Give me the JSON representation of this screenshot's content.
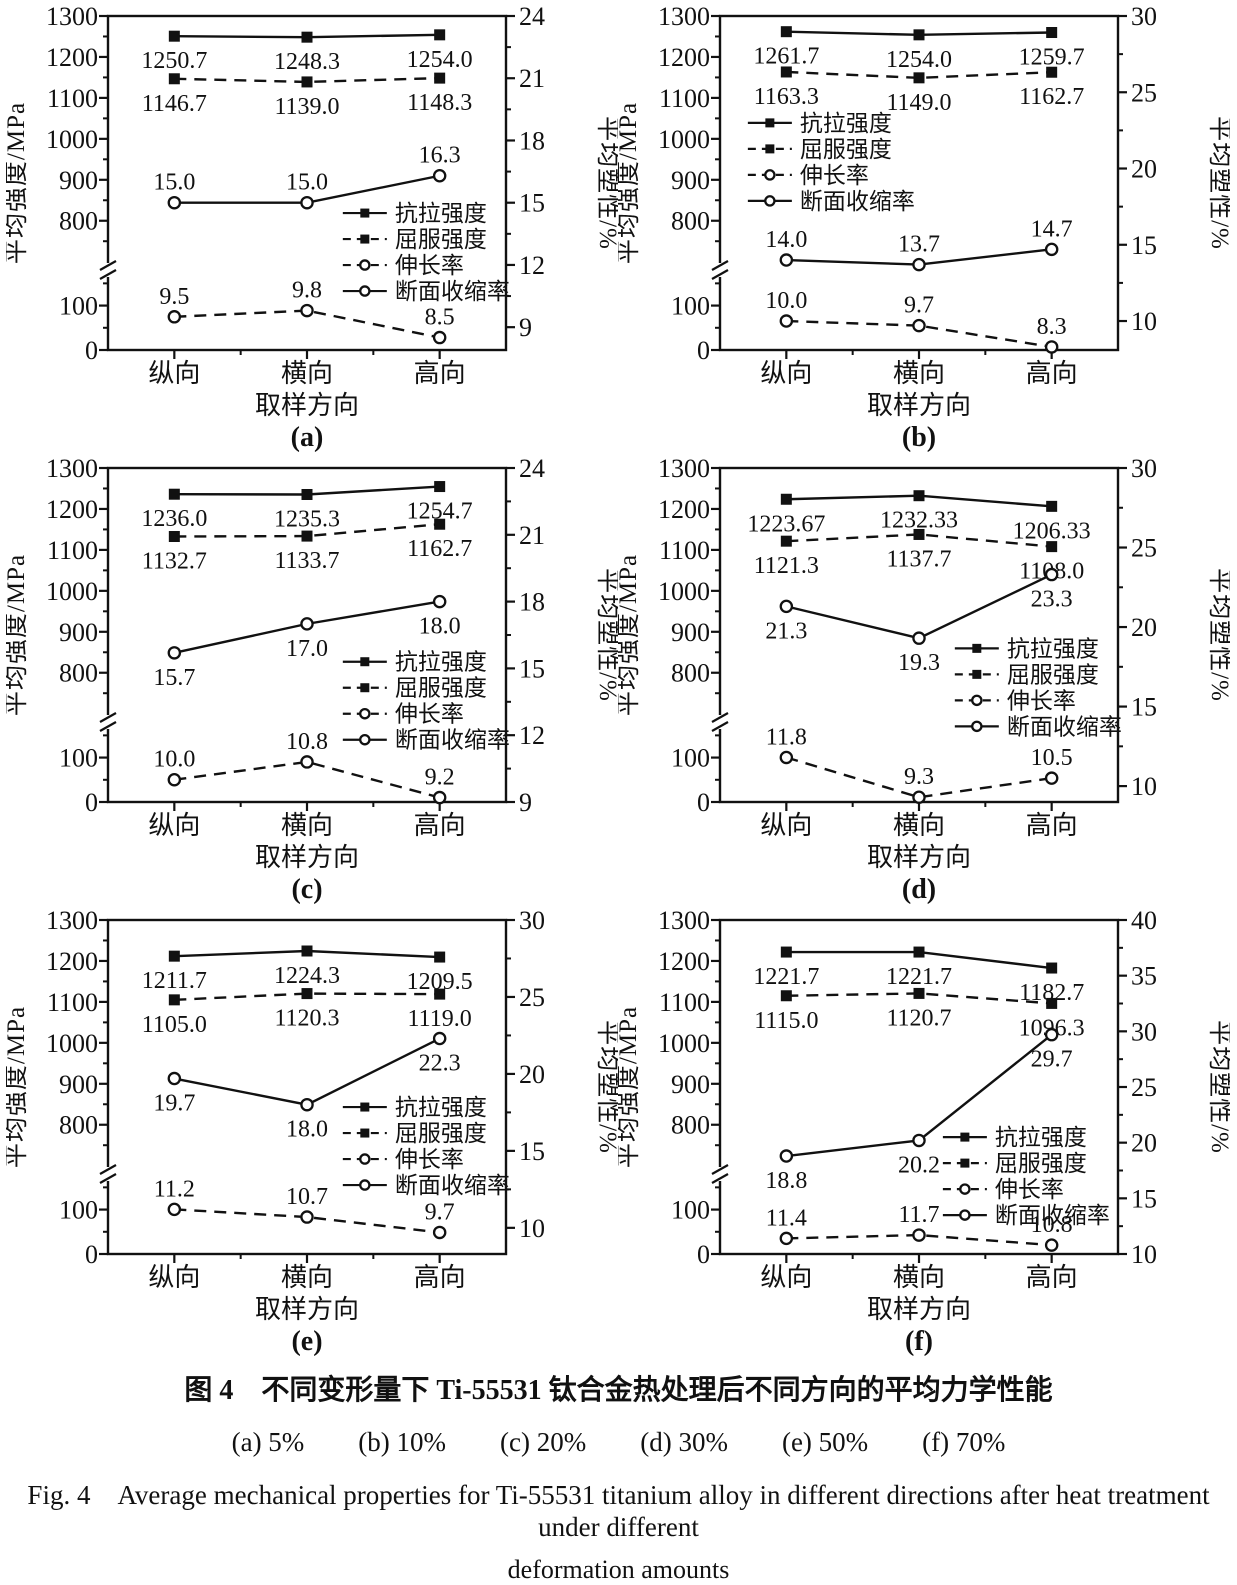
{
  "caption": {
    "line1_cn": "图 4　不同变形量下 Ti-55531 钛合金热处理后不同方向的平均力学性能",
    "line2_items": "(a) 5%　　(b) 10%　　(c) 20%　　(d) 30%　　(e) 50%　　(f) 70%",
    "line3_en": "Fig. 4　Average mechanical properties for Ti-55531 titanium alloy in different directions after heat treatment under different",
    "line4_en": "deformation amounts"
  },
  "chart_data": {
    "type": "line",
    "grid": "2 columns x 3 rows",
    "common": {
      "categories": [
        "纵向",
        "横向",
        "高向"
      ],
      "x_label": "取样方向",
      "left_axis": {
        "label": "平均强度/MPa",
        "ticks_major": [
          1300,
          1200,
          1100,
          1000,
          900,
          800,
          100,
          0
        ],
        "ticks_minor": [
          1250,
          1150,
          1050,
          950,
          850,
          750,
          150,
          50
        ],
        "break": true
      },
      "right_axis_label": "平均塑性/%",
      "series_styles": [
        {
          "name": "抗拉强度",
          "axis": "left",
          "line": "solid",
          "marker": "filled-square"
        },
        {
          "name": "屈服强度",
          "axis": "left",
          "line": "dashed",
          "marker": "filled-square"
        },
        {
          "name": "伸长率",
          "axis": "right",
          "line": "dashed",
          "marker": "open-circle"
        },
        {
          "name": "断面收缩率",
          "axis": "right",
          "line": "solid",
          "marker": "open-circle"
        }
      ]
    },
    "plots": [
      {
        "label": "(a)",
        "deformation": "5%",
        "right_axis": {
          "ticks": [
            24,
            21,
            18,
            15,
            12,
            9
          ],
          "range": [
            7.9,
            24
          ]
        },
        "legend_pos": [
          0.59,
          0.59
        ],
        "series": [
          {
            "name": "抗拉强度",
            "values": [
              1250.7,
              1248.3,
              1254.0
            ],
            "labels": [
              "1250.7",
              "1248.3",
              "1254.0"
            ],
            "label_pos": "below"
          },
          {
            "name": "屈服强度",
            "values": [
              1146.7,
              1139.0,
              1148.3
            ],
            "labels": [
              "1146.7",
              "1139.0",
              "1148.3"
            ],
            "label_pos": "below"
          },
          {
            "name": "伸长率",
            "values": [
              9.5,
              9.8,
              8.5
            ],
            "labels": [
              "9.5",
              "9.8",
              "8.5"
            ],
            "label_pos": "above"
          },
          {
            "name": "断面收缩率",
            "values": [
              15.0,
              15.0,
              16.3
            ],
            "labels": [
              "15.0",
              "15.0",
              "16.3"
            ],
            "label_pos": "above"
          }
        ]
      },
      {
        "label": "(b)",
        "deformation": "10%",
        "right_axis": {
          "ticks": [
            30,
            25,
            20,
            15,
            10
          ],
          "range": [
            8.1,
            30
          ]
        },
        "legend_pos": [
          0.07,
          0.32
        ],
        "series": [
          {
            "name": "抗拉强度",
            "values": [
              1261.7,
              1254.0,
              1259.7
            ],
            "labels": [
              "1261.7",
              "1254.0",
              "1259.7"
            ],
            "label_pos": "below"
          },
          {
            "name": "屈服强度",
            "values": [
              1163.3,
              1149.0,
              1162.7
            ],
            "labels": [
              "1163.3",
              "1149.0",
              "1162.7"
            ],
            "label_pos": "below"
          },
          {
            "name": "伸长率",
            "values": [
              10.0,
              9.7,
              8.3
            ],
            "labels": [
              "10.0",
              "9.7",
              "8.3"
            ],
            "label_pos": "above"
          },
          {
            "name": "断面收缩率",
            "values": [
              14.0,
              13.7,
              14.7
            ],
            "labels": [
              "14.0",
              "13.7",
              "14.7"
            ],
            "label_pos": "above"
          }
        ]
      },
      {
        "label": "(c)",
        "deformation": "20%",
        "right_axis": {
          "ticks": [
            24,
            21,
            18,
            15,
            12,
            9
          ],
          "range": [
            9.0,
            24
          ]
        },
        "legend_pos": [
          0.59,
          0.58
        ],
        "series": [
          {
            "name": "抗拉强度",
            "values": [
              1236.0,
              1235.3,
              1254.7
            ],
            "labels": [
              "1236.0",
              "1235.3",
              "1254.7"
            ],
            "label_pos": "below"
          },
          {
            "name": "屈服强度",
            "values": [
              1132.7,
              1133.7,
              1162.7
            ],
            "labels": [
              "1132.7",
              "1133.7",
              "1162.7"
            ],
            "label_pos": "below"
          },
          {
            "name": "伸长率",
            "values": [
              10.0,
              10.8,
              9.2
            ],
            "labels": [
              "10.0",
              "10.8",
              "9.2"
            ],
            "label_pos": "above"
          },
          {
            "name": "断面收缩率",
            "values": [
              15.7,
              17.0,
              18.0
            ],
            "labels": [
              "15.7",
              "17.0",
              "18.0"
            ],
            "label_pos": "below"
          }
        ]
      },
      {
        "label": "(d)",
        "deformation": "30%",
        "right_axis": {
          "ticks": [
            30,
            25,
            20,
            15,
            10
          ],
          "range": [
            9.0,
            30
          ]
        },
        "legend_pos": [
          0.59,
          0.54
        ],
        "series": [
          {
            "name": "抗拉强度",
            "values": [
              1223.67,
              1232.33,
              1206.33
            ],
            "labels": [
              "1223.67",
              "1232.33",
              "1206.33"
            ],
            "label_pos": "below"
          },
          {
            "name": "屈服强度",
            "values": [
              1121.3,
              1137.7,
              1108.0
            ],
            "labels": [
              "1121.3",
              "1137.7",
              "1108.0"
            ],
            "label_pos": "below"
          },
          {
            "name": "伸长率",
            "values": [
              11.8,
              9.3,
              10.5
            ],
            "labels": [
              "11.8",
              "9.3",
              "10.5"
            ],
            "label_pos": "above"
          },
          {
            "name": "断面收缩率",
            "values": [
              21.3,
              19.3,
              23.3
            ],
            "labels": [
              "21.3",
              "19.3",
              "23.3"
            ],
            "label_pos": "below"
          }
        ]
      },
      {
        "label": "(e)",
        "deformation": "50%",
        "right_axis": {
          "ticks": [
            30,
            25,
            20,
            15,
            10
          ],
          "range": [
            8.3,
            30
          ]
        },
        "legend_pos": [
          0.59,
          0.56
        ],
        "series": [
          {
            "name": "抗拉强度",
            "values": [
              1211.7,
              1224.3,
              1209.5
            ],
            "labels": [
              "1211.7",
              "1224.3",
              "1209.5"
            ],
            "label_pos": "below"
          },
          {
            "name": "屈服强度",
            "values": [
              1105.0,
              1120.3,
              1119.0
            ],
            "labels": [
              "1105.0",
              "1120.3",
              "1119.0"
            ],
            "label_pos": "below"
          },
          {
            "name": "伸长率",
            "values": [
              11.2,
              10.7,
              9.7
            ],
            "labels": [
              "11.2",
              "10.7",
              "9.7"
            ],
            "label_pos": "above"
          },
          {
            "name": "断面收缩率",
            "values": [
              19.7,
              18.0,
              22.3
            ],
            "labels": [
              "19.7",
              "18.0",
              "22.3"
            ],
            "label_pos": "below"
          }
        ]
      },
      {
        "label": "(f)",
        "deformation": "70%",
        "right_axis": {
          "ticks": [
            40,
            35,
            30,
            25,
            20,
            15,
            10
          ],
          "range": [
            10,
            40
          ]
        },
        "legend_pos": [
          0.56,
          0.65
        ],
        "series": [
          {
            "name": "抗拉强度",
            "values": [
              1221.7,
              1221.7,
              1182.7
            ],
            "labels": [
              "1221.7",
              "1221.7",
              "1182.7"
            ],
            "label_pos": "below"
          },
          {
            "name": "屈服强度",
            "values": [
              1115.0,
              1120.7,
              1096.3
            ],
            "labels": [
              "1115.0",
              "1120.7",
              "1096.3"
            ],
            "label_pos": "below"
          },
          {
            "name": "伸长率",
            "values": [
              11.4,
              11.7,
              10.8
            ],
            "labels": [
              "11.4",
              "11.7",
              "10.8"
            ],
            "label_pos": "above"
          },
          {
            "name": "断面收缩率",
            "values": [
              18.8,
              20.2,
              29.7
            ],
            "labels": [
              "18.8",
              "20.2",
              "29.7"
            ],
            "label_pos": "below"
          }
        ]
      }
    ]
  }
}
